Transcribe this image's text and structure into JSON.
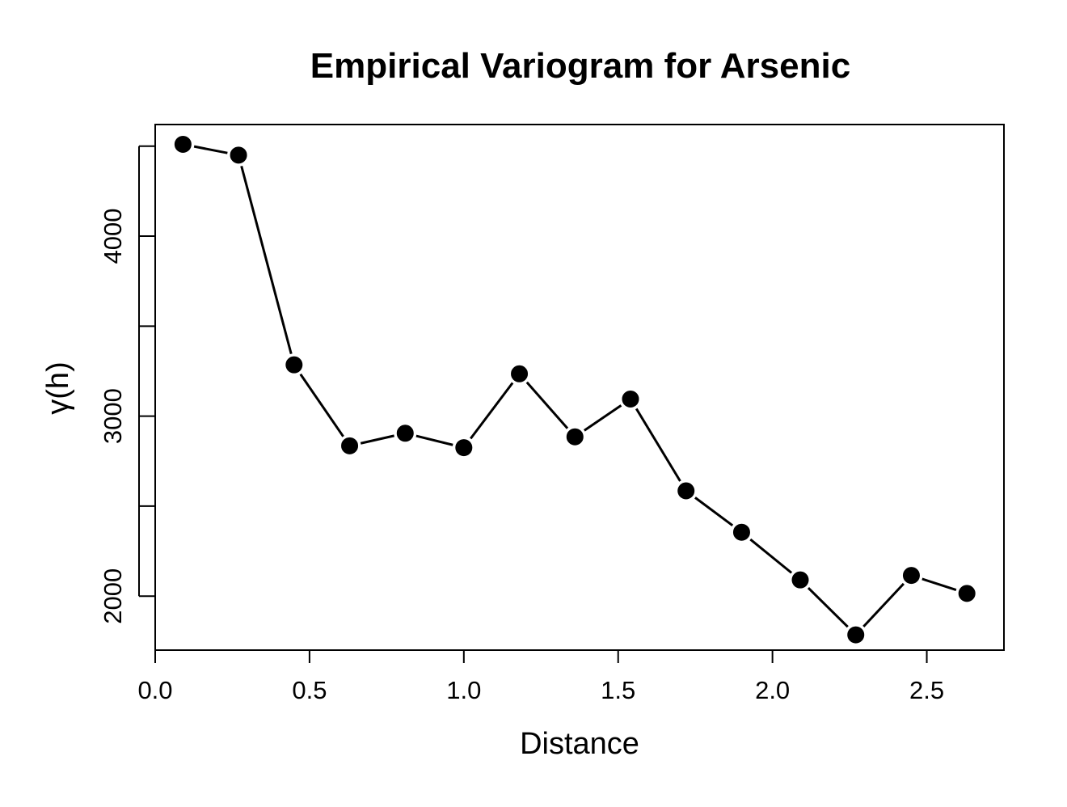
{
  "chart_data": {
    "type": "line",
    "title": "Empirical Variogram for Arsenic",
    "xlabel": "Distance",
    "ylabel": "γ(h)",
    "xlim": [
      0,
      2.75
    ],
    "ylim": [
      1700,
      4620
    ],
    "x_ticks": [
      0.0,
      0.5,
      1.0,
      1.5,
      2.0,
      2.5
    ],
    "x_tick_labels": [
      "0.0",
      "0.5",
      "1.0",
      "1.5",
      "2.0",
      "2.5"
    ],
    "y_ticks": [
      2000,
      2500,
      3000,
      3500,
      4000,
      4500
    ],
    "y_tick_labels": [
      "2000",
      "",
      "3000",
      "",
      "4000",
      ""
    ],
    "grid": false,
    "markers": "filled-circle",
    "series": [
      {
        "x": [
          0.09,
          0.27,
          0.45,
          0.63,
          0.81,
          1.0,
          1.18,
          1.36,
          1.54,
          1.72,
          1.9,
          2.09,
          2.27,
          2.45,
          2.63
        ],
        "values": [
          4510,
          4450,
          3285,
          2835,
          2905,
          2825,
          3235,
          2885,
          3095,
          2585,
          2355,
          2090,
          1785,
          2115,
          2015
        ]
      }
    ]
  }
}
